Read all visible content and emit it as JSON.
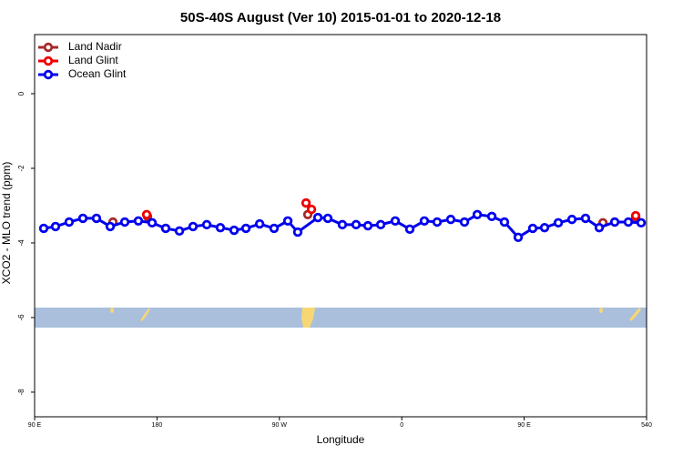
{
  "chart_data": {
    "type": "scatter",
    "title": "50S-40S August (Ver 10)   2015-01-01 to 2020-12-18",
    "xlabel": "Longitude",
    "ylabel": "XCO2 - MLO trend (ppm)",
    "xlim": [
      90,
      540
    ],
    "ylim": [
      1.585,
      -8.66
    ],
    "xticks": [
      {
        "value": 90,
        "label": "90 E"
      },
      180,
      {
        "value": 270,
        "label": "90 W"
      },
      {
        "value": 360,
        "label": "0"
      },
      {
        "value": 450,
        "label": "90 E"
      },
      540
    ],
    "yticks": [
      0,
      -2,
      -4,
      -6,
      -8
    ],
    "legend": "top-left",
    "series": [
      {
        "name": "Land Nadir",
        "color": "#a52a2a",
        "connected": false,
        "x": [
          147.6,
          173.0,
          290.9,
          507.9,
          532.0
        ],
        "values": [
          -3.44,
          -3.29,
          -3.24,
          -3.46,
          -3.32
        ]
      },
      {
        "name": "Land Glint",
        "color": "#ee0000",
        "connected": false,
        "x": [
          172.4,
          289.6,
          293.6,
          532.0
        ],
        "values": [
          -3.24,
          -2.93,
          -3.1,
          -3.27
        ]
      },
      {
        "name": "Ocean Glint",
        "color": "#0000ee",
        "connected": true,
        "x": [
          96.7,
          105.4,
          115.4,
          125.5,
          135.5,
          145.6,
          156.3,
          166.3,
          176.4,
          186.4,
          196.5,
          206.5,
          216.6,
          226.6,
          236.7,
          245.4,
          255.5,
          266.1,
          276.2,
          283.5,
          298.3,
          305.6,
          316.3,
          326.4,
          335.1,
          344.5,
          355.2,
          365.9,
          376.6,
          386.0,
          396.0,
          406.1,
          415.5,
          426.2,
          435.5,
          445.6,
          456.3,
          465.0,
          475.1,
          485.1,
          495.1,
          505.2,
          516.6,
          526.6,
          536.0
        ],
        "values": [
          -3.61,
          -3.56,
          -3.44,
          -3.34,
          -3.34,
          -3.56,
          -3.44,
          -3.41,
          -3.46,
          -3.61,
          -3.68,
          -3.56,
          -3.51,
          -3.59,
          -3.66,
          -3.61,
          -3.49,
          -3.61,
          -3.41,
          -3.71,
          -3.32,
          -3.34,
          -3.51,
          -3.51,
          -3.54,
          -3.51,
          -3.41,
          -3.63,
          -3.41,
          -3.44,
          -3.37,
          -3.44,
          -3.24,
          -3.29,
          -3.44,
          -3.85,
          -3.61,
          -3.59,
          -3.46,
          -3.37,
          -3.34,
          -3.59,
          -3.44,
          -3.44,
          -3.46
        ]
      }
    ]
  }
}
